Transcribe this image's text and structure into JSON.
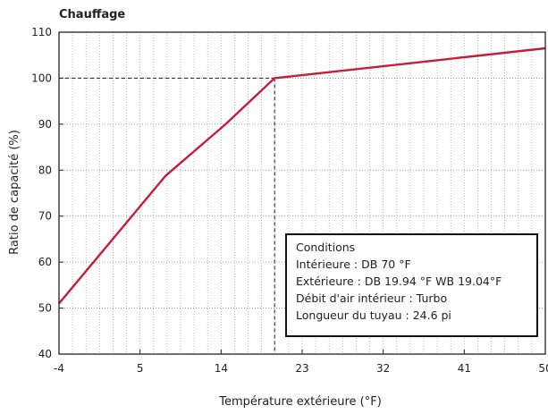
{
  "chart_data": {
    "type": "line",
    "title": "Chauffage",
    "xlabel": "Température extérieure (°F)",
    "ylabel": "Ratio de capacité (%)",
    "xlim": [
      -4,
      50
    ],
    "ylim": [
      40,
      110
    ],
    "x_ticks": [
      -4,
      5,
      14,
      23,
      32,
      41,
      50
    ],
    "y_ticks": [
      40,
      50,
      60,
      70,
      80,
      90,
      100,
      110
    ],
    "grid": true,
    "series": [
      {
        "color": "#c41e3a",
        "points": [
          {
            "x": -4,
            "y": 51
          },
          {
            "x": 7.8,
            "y": 78.7
          },
          {
            "x": 14.5,
            "y": 90
          },
          {
            "x": 19.94,
            "y": 100
          },
          {
            "x": 50.4,
            "y": 106.5
          }
        ]
      }
    ],
    "reference_point": {
      "x": 19.94,
      "y": 100
    },
    "annotation": {
      "lines": [
        "Conditions",
        "Intérieure : DB 70 °F",
        "Extérieure : DB 19.94 °F    WB 19.04°F",
        "Débit d'air intérieur : Turbo",
        "Longueur du tuyau : 24.6 pi"
      ]
    }
  }
}
